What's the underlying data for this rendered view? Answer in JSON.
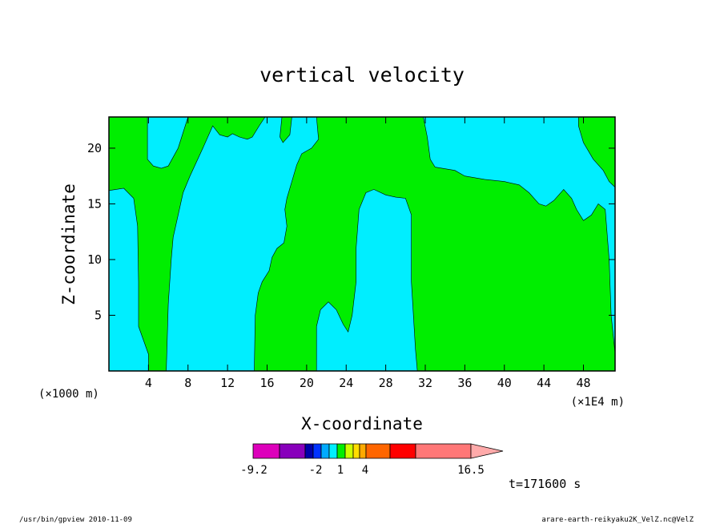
{
  "chart_data": {
    "type": "heatmap",
    "title": "vertical velocity",
    "xlabel": "X-coordinate",
    "ylabel": "Z-coordinate",
    "x_unit": "(×1E4 m)",
    "y_unit": "(×1000 m)",
    "xlim": [
      0,
      51.2
    ],
    "ylim": [
      0,
      22.8
    ],
    "xticks": [
      {
        "value": 4,
        "label": "4"
      },
      {
        "value": 8,
        "label": "8"
      },
      {
        "value": 12,
        "label": "12"
      },
      {
        "value": 16,
        "label": "16"
      },
      {
        "value": 20,
        "label": "20"
      },
      {
        "value": 24,
        "label": "24"
      },
      {
        "value": 28,
        "label": "28"
      },
      {
        "value": 32,
        "label": "32"
      },
      {
        "value": 36,
        "label": "36"
      },
      {
        "value": 40,
        "label": "40"
      },
      {
        "value": 44,
        "label": "44"
      },
      {
        "value": 48,
        "label": "48"
      }
    ],
    "yticks": [
      {
        "value": 5,
        "label": "5"
      },
      {
        "value": 10,
        "label": "10"
      },
      {
        "value": 15,
        "label": "15"
      },
      {
        "value": 20,
        "label": "20"
      }
    ],
    "background_level": {
      "range": "1 to 4",
      "color": "#00ee00"
    },
    "regions": [
      {
        "level": "-2 to 1",
        "color": "#00eeff",
        "points": [
          [
            0,
            16.2
          ],
          [
            1.5,
            16.4
          ],
          [
            2.5,
            15.5
          ],
          [
            2.9,
            13
          ],
          [
            3,
            8
          ],
          [
            3,
            4
          ],
          [
            4,
            1.5
          ],
          [
            4,
            0
          ],
          [
            0,
            0
          ],
          [
            0,
            1
          ]
        ]
      },
      {
        "level": "-2 to 1",
        "color": "#00eeff",
        "points": [
          [
            3.9,
            22.8
          ],
          [
            3.9,
            19
          ],
          [
            4.5,
            18.4
          ],
          [
            5.3,
            18.2
          ],
          [
            6,
            18.4
          ],
          [
            7,
            20
          ],
          [
            8,
            22.8
          ]
        ]
      },
      {
        "level": "-2 to 1",
        "color": "#00eeff",
        "points": [
          [
            5.8,
            0
          ],
          [
            6,
            6
          ],
          [
            6.3,
            10
          ],
          [
            6.5,
            12
          ],
          [
            7,
            14
          ],
          [
            7.5,
            16
          ],
          [
            8.2,
            17.5
          ],
          [
            9.5,
            20
          ],
          [
            10.5,
            22
          ],
          [
            11.2,
            21.2
          ],
          [
            12,
            21
          ],
          [
            12.5,
            21.3
          ],
          [
            13.2,
            21
          ],
          [
            14,
            20.8
          ],
          [
            14.5,
            21
          ],
          [
            15.2,
            22
          ],
          [
            15.8,
            22.8
          ],
          [
            17.5,
            22.8
          ],
          [
            17.3,
            21
          ],
          [
            17.6,
            20.5
          ],
          [
            18.3,
            21.2
          ],
          [
            18.5,
            22.8
          ],
          [
            21,
            22.8
          ],
          [
            21.2,
            20.8
          ],
          [
            20.5,
            20
          ],
          [
            19.5,
            19.5
          ],
          [
            19,
            18.5
          ],
          [
            18.5,
            17
          ],
          [
            18,
            15.5
          ],
          [
            17.8,
            14.5
          ],
          [
            18,
            13
          ],
          [
            17.7,
            11.5
          ],
          [
            17,
            11
          ],
          [
            16.5,
            10.2
          ],
          [
            16.2,
            9
          ],
          [
            15.5,
            8
          ],
          [
            15.1,
            7
          ],
          [
            14.8,
            5
          ],
          [
            14.7,
            0
          ]
        ]
      },
      {
        "level": "-2 to 1",
        "color": "#00eeff",
        "points": [
          [
            21,
            0
          ],
          [
            21,
            4
          ],
          [
            21.4,
            5.5
          ],
          [
            22.2,
            6.2
          ],
          [
            23,
            5.5
          ],
          [
            23.7,
            4.2
          ],
          [
            24.2,
            3.5
          ],
          [
            24.6,
            5
          ],
          [
            25,
            8
          ],
          [
            25,
            11
          ],
          [
            25.3,
            14.5
          ],
          [
            26,
            16
          ],
          [
            26.8,
            16.3
          ],
          [
            28,
            15.8
          ],
          [
            29,
            15.6
          ],
          [
            30,
            15.5
          ],
          [
            30.6,
            14
          ],
          [
            30.6,
            8
          ],
          [
            31,
            2
          ],
          [
            31.2,
            0
          ]
        ]
      },
      {
        "level": "-2 to 1",
        "color": "#00eeff",
        "points": [
          [
            31.8,
            22.8
          ],
          [
            32.2,
            21
          ],
          [
            32.5,
            19
          ],
          [
            33,
            18.3
          ],
          [
            35,
            18
          ],
          [
            36,
            17.5
          ],
          [
            38,
            17.2
          ],
          [
            40,
            17
          ],
          [
            41.5,
            16.7
          ],
          [
            42.5,
            16
          ],
          [
            43.5,
            15
          ],
          [
            44.2,
            14.8
          ],
          [
            45,
            15.3
          ],
          [
            46,
            16.3
          ],
          [
            46.8,
            15.5
          ],
          [
            47.3,
            14.5
          ],
          [
            48,
            13.5
          ],
          [
            48.8,
            14
          ],
          [
            49.5,
            15
          ],
          [
            50.2,
            14.5
          ],
          [
            50.6,
            10
          ],
          [
            50.8,
            5
          ],
          [
            51.2,
            1.6
          ],
          [
            51.2,
            16.5
          ],
          [
            50.6,
            17
          ],
          [
            50,
            18
          ],
          [
            49,
            19
          ],
          [
            48,
            20.5
          ],
          [
            47.5,
            22
          ],
          [
            47.5,
            22.8
          ]
        ]
      }
    ],
    "colorbar": {
      "min_label": "-9.2",
      "max_label": "16.5",
      "tick_labels": [
        "-2",
        "1",
        "4"
      ],
      "bins": [
        {
          "color": "#dd00bb"
        },
        {
          "color": "#8800bb"
        },
        {
          "color": "#0000aa"
        },
        {
          "color": "#0033ff"
        },
        {
          "color": "#00aaff"
        },
        {
          "color": "#00eeff"
        },
        {
          "color": "#00ee00"
        },
        {
          "color": "#ccff00"
        },
        {
          "color": "#ffdd00"
        },
        {
          "color": "#ffaa00"
        },
        {
          "color": "#ff6600"
        },
        {
          "color": "#ff0000"
        },
        {
          "color": "#ff7777"
        }
      ],
      "extend_color": "#ffaaaa"
    },
    "grid": false,
    "legend": "bottom-center colorbar"
  },
  "time_label": "t=171600 s",
  "footer_left": "/usr/bin/gpview  2010-11-09",
  "footer_right": "arare-earth-reikyaku2K_VelZ.nc@VelZ"
}
